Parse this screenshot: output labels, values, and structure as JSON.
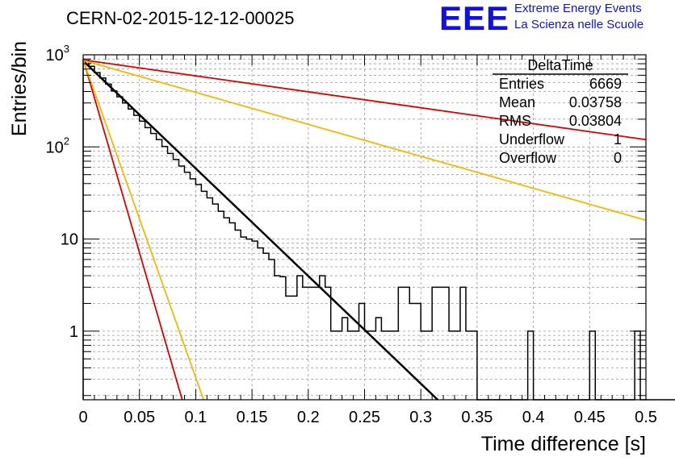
{
  "header": {
    "title": "CERN-02-2015-12-12-00025",
    "logo_text": "EEE",
    "logo_line1": "Extreme Energy Events",
    "logo_line2": "La Scienza nelle Scuole"
  },
  "stats": {
    "name": "DeltaTime",
    "rows": [
      {
        "label": "Entries",
        "value": "6669"
      },
      {
        "label": "Mean",
        "value": "0.03758"
      },
      {
        "label": "RMS",
        "value": "0.03804"
      },
      {
        "label": "Underflow",
        "value": "1"
      },
      {
        "label": "Overflow",
        "value": "0"
      }
    ]
  },
  "chart_data": {
    "type": "histogram",
    "title": "CERN-02-2015-12-12-00025",
    "xlabel": "Time difference [s]",
    "ylabel": "Entries/bin",
    "xlim": [
      0,
      0.5
    ],
    "ylim": [
      0.18,
      1000
    ],
    "yscale": "log",
    "grid": true,
    "x_ticks": [
      "0",
      "0.05",
      "0.1",
      "0.15",
      "0.2",
      "0.25",
      "0.3",
      "0.35",
      "0.4",
      "0.45",
      "0.5"
    ],
    "y_tick_labels": [
      {
        "v": 1,
        "text": "1"
      },
      {
        "v": 10,
        "text": "10"
      },
      {
        "v": 100,
        "text": "10",
        "exp": "2"
      },
      {
        "v": 1000,
        "text": "10",
        "exp": "3"
      }
    ],
    "bin_width": 0.005,
    "histogram_counts": [
      872,
      750,
      640,
      560,
      480,
      405,
      350,
      300,
      258,
      220,
      190,
      162,
      140,
      120,
      101,
      85,
      73,
      62,
      53,
      45,
      39,
      33,
      28,
      24,
      20,
      17,
      15,
      12.5,
      10.5,
      10,
      9.5,
      8,
      7,
      6,
      4,
      3.9,
      2.4,
      2.4,
      4,
      3,
      3,
      3,
      4,
      3,
      1,
      1,
      1.4,
      1,
      1,
      2,
      1,
      1,
      1.4,
      1,
      1,
      1,
      3,
      3,
      2,
      2,
      1,
      1,
      3,
      3,
      3,
      1,
      1,
      3,
      1,
      1,
      0,
      0,
      0,
      0,
      0,
      0,
      0,
      0,
      0,
      1,
      0,
      0,
      0,
      0,
      0,
      0,
      0,
      0,
      0,
      0,
      1,
      0,
      0,
      0,
      0,
      0,
      0,
      0,
      1,
      0,
      0,
      0,
      0,
      0,
      0,
      0,
      0,
      0,
      0,
      0,
      0,
      0,
      0,
      0,
      0,
      0
    ],
    "series": [
      {
        "points": [
          [
            0,
            860
          ],
          [
            0.315,
            0.18
          ]
        ],
        "color": "#000000"
      },
      {
        "points": [
          [
            0,
            880
          ],
          [
            0.5,
            120
          ]
        ],
        "color": "#dd0000"
      },
      {
        "points": [
          [
            0,
            870
          ],
          [
            0.5,
            16
          ]
        ],
        "color": "#f5b800"
      },
      {
        "points": [
          [
            0,
            900
          ],
          [
            0.088,
            0.18
          ]
        ],
        "color": "#dd0000"
      },
      {
        "points": [
          [
            0,
            880
          ],
          [
            0.107,
            0.18
          ]
        ],
        "color": "#f5b800"
      }
    ]
  }
}
